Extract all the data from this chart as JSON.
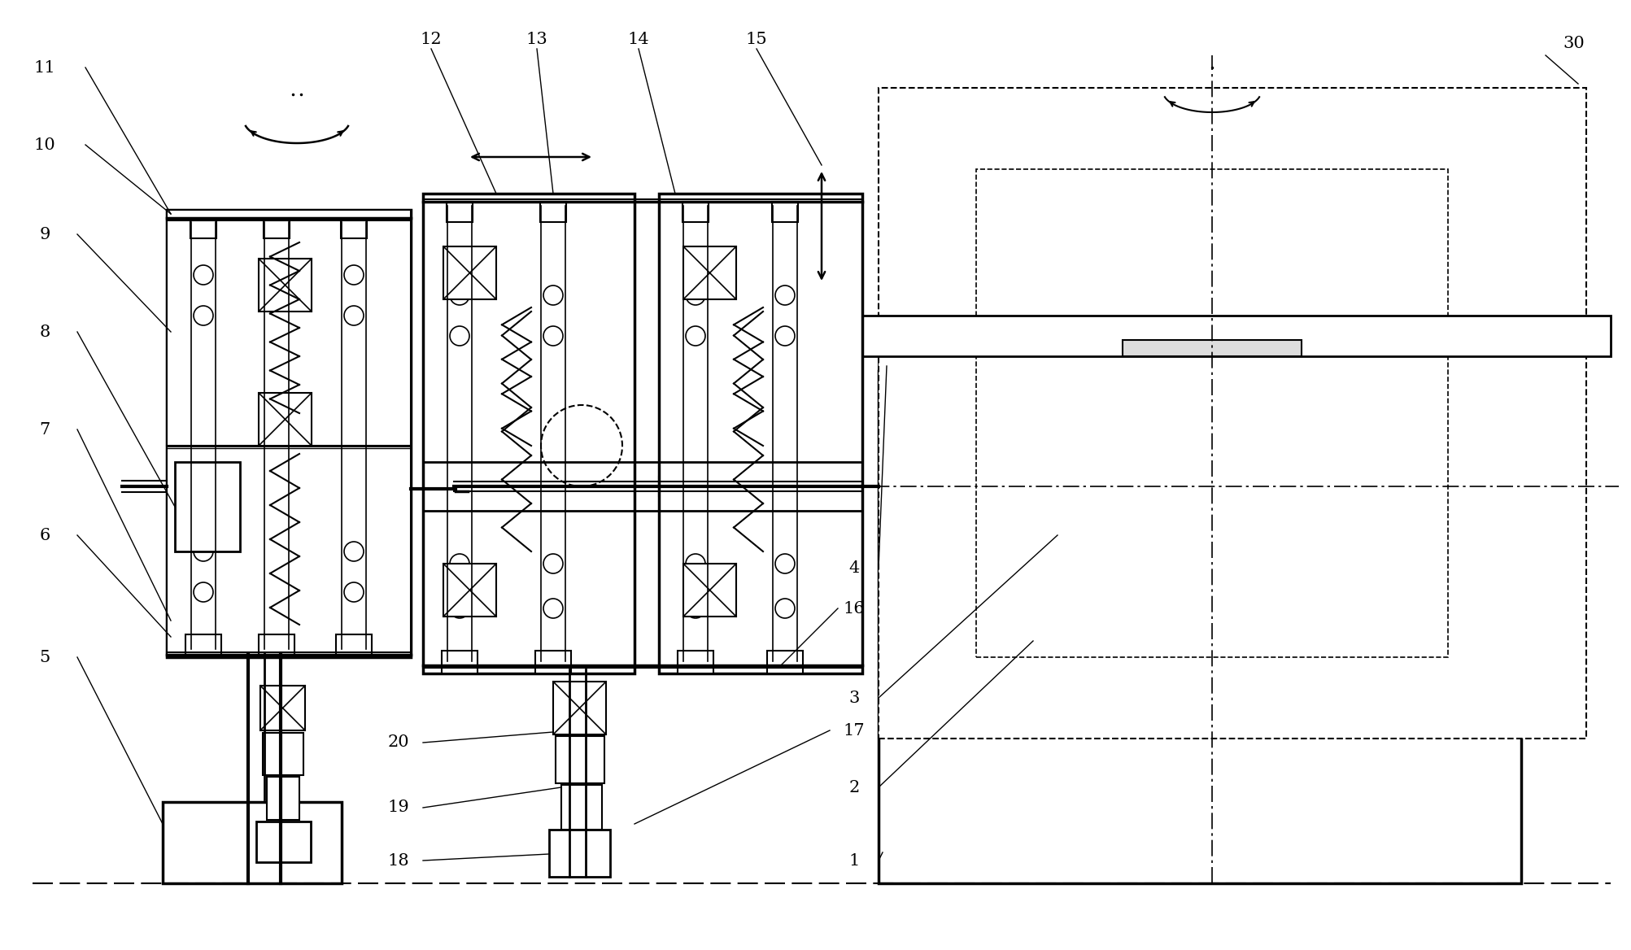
{
  "fig_width": 20.06,
  "fig_height": 11.68,
  "bg_color": "#ffffff"
}
